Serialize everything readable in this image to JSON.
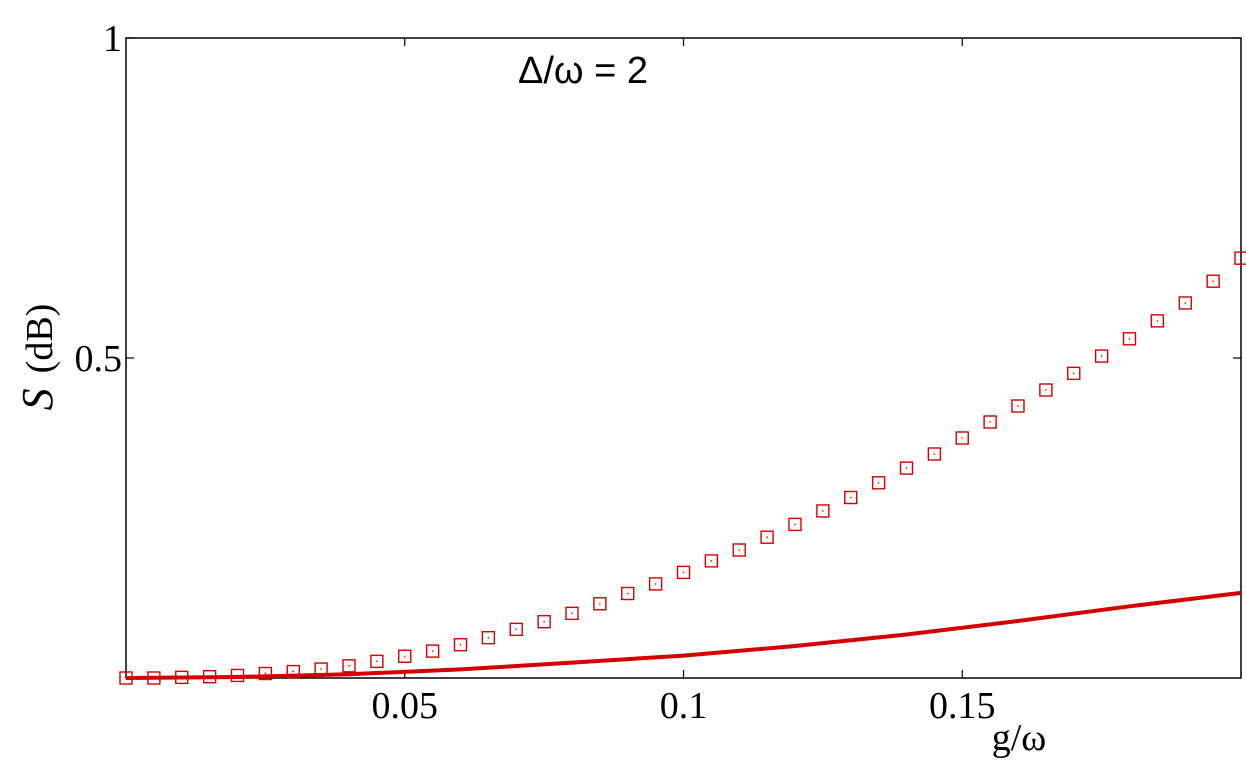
{
  "chart_data": {
    "type": "line",
    "annotation": "Δ/ω = 2",
    "xlabel": "g/ω",
    "ylabel_italic": "S",
    "ylabel_units": "(dB)",
    "xlim": [
      0,
      0.2
    ],
    "ylim": [
      0,
      1
    ],
    "x_ticks": [
      0.05,
      0.1,
      0.15
    ],
    "x_tick_labels": [
      "0.05",
      "0.1",
      "0.15"
    ],
    "y_ticks": [
      0.5,
      1
    ],
    "y_tick_labels": [
      "0.5",
      "1"
    ],
    "grid": false,
    "colors": {
      "series": "#d40000",
      "axes": "#000000"
    },
    "series": [
      {
        "style": "solid-line",
        "x": [
          0,
          0.02,
          0.04,
          0.06,
          0.08,
          0.1,
          0.12,
          0.14,
          0.16,
          0.18,
          0.2
        ],
        "values": [
          0,
          0.0015,
          0.006,
          0.0135,
          0.024,
          0.035,
          0.05,
          0.068,
          0.089,
          0.112,
          0.133
        ]
      },
      {
        "style": "open-square-markers",
        "x": [
          0.0,
          0.005,
          0.01,
          0.015,
          0.02,
          0.025,
          0.03,
          0.035,
          0.04,
          0.045,
          0.05,
          0.055,
          0.06,
          0.065,
          0.07,
          0.075,
          0.08,
          0.085,
          0.09,
          0.095,
          0.1,
          0.105,
          0.11,
          0.115,
          0.12,
          0.125,
          0.13,
          0.135,
          0.14,
          0.145,
          0.15,
          0.155,
          0.16,
          0.165,
          0.17,
          0.175,
          0.18,
          0.185,
          0.19,
          0.195,
          0.2
        ],
        "values": [
          0.0,
          0.0,
          0.001,
          0.002,
          0.004,
          0.007,
          0.01,
          0.014,
          0.019,
          0.026,
          0.034,
          0.042,
          0.052,
          0.063,
          0.076,
          0.088,
          0.101,
          0.116,
          0.132,
          0.147,
          0.165,
          0.183,
          0.2,
          0.22,
          0.24,
          0.261,
          0.282,
          0.305,
          0.328,
          0.35,
          0.375,
          0.4,
          0.425,
          0.45,
          0.476,
          0.503,
          0.53,
          0.558,
          0.586,
          0.62,
          0.656
        ]
      }
    ]
  }
}
